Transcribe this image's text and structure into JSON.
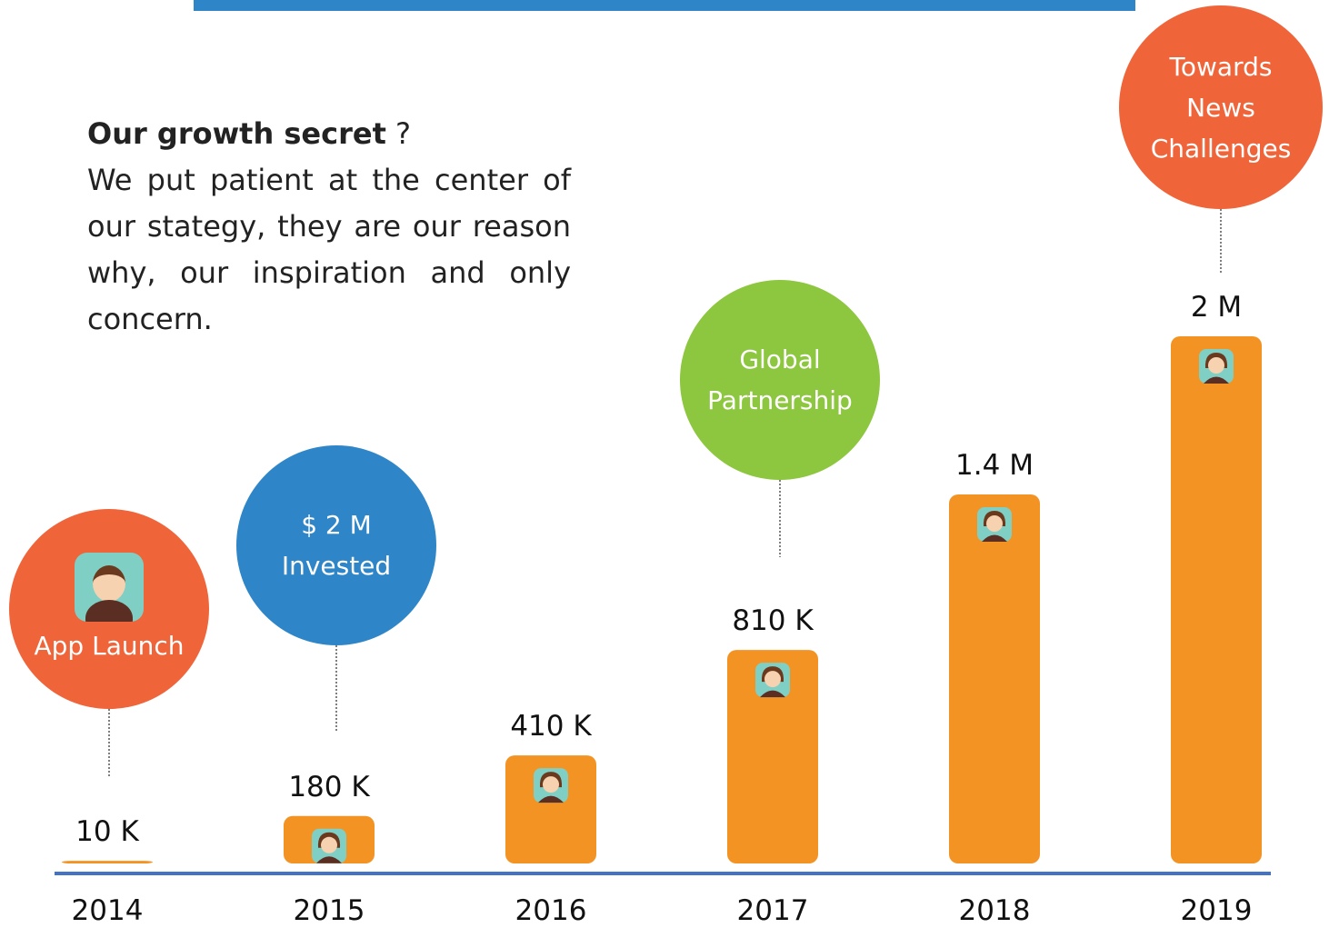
{
  "chart_data": {
    "type": "bar",
    "categories": [
      "2014",
      "2015",
      "2016",
      "2017",
      "2018",
      "2019"
    ],
    "values": [
      10000,
      180000,
      410000,
      810000,
      1400000,
      2000000
    ],
    "value_labels": [
      "10 K",
      "180 K",
      "410 K",
      "810 K",
      "1.4 M",
      "2 M"
    ],
    "color": "#f39323",
    "axis_color": "#4472c4",
    "annotations": [
      {
        "text": "App Launch",
        "color": "#f0643a"
      },
      {
        "text": "$ 2 M Invested",
        "color": "#2e86c8"
      },
      {
        "text": "Global Partnership",
        "color": "#8dc63f"
      },
      {
        "text": "Towards News Challenges",
        "color": "#f0643a"
      }
    ]
  },
  "intro": {
    "heading": "Our growth secret",
    "suffix": "?",
    "body": "We put patient at the center of our stategy, they are our reason why, our inspiration and only concern."
  }
}
